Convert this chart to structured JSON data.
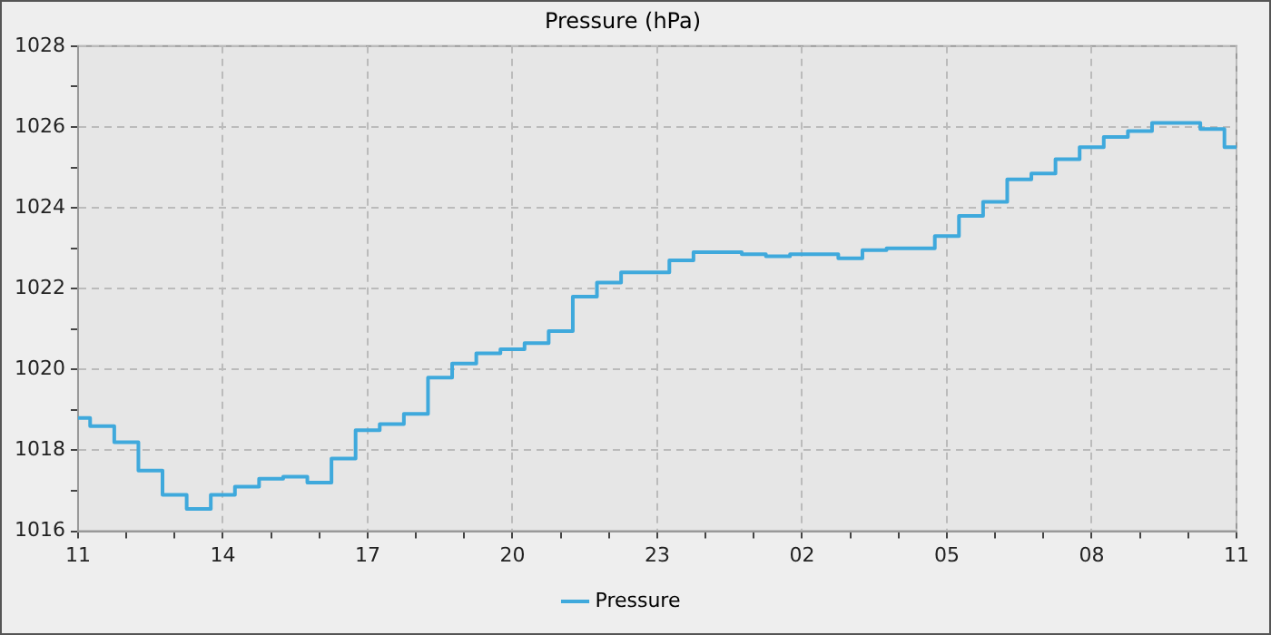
{
  "chart_data": {
    "type": "step",
    "title": "Pressure (hPa)",
    "legend": "bottom",
    "grid": true,
    "line_style": "solid",
    "marker": "none",
    "categories": [
      "11",
      null,
      null,
      null,
      null,
      null,
      "14",
      null,
      null,
      null,
      null,
      null,
      "17",
      null,
      null,
      null,
      null,
      null,
      "20",
      null,
      null,
      null,
      null,
      null,
      "23",
      null,
      null,
      null,
      null,
      null,
      "02",
      null,
      null,
      null,
      null,
      null,
      "05",
      null,
      null,
      null,
      null,
      null,
      "08",
      null,
      null,
      null,
      null,
      null,
      "11"
    ],
    "ylim": [
      1016,
      1028
    ],
    "yticks": [
      1016,
      {
        "value": 1017,
        "label": null
      },
      1018,
      {
        "value": 1019,
        "label": null
      },
      1020,
      {
        "value": 1021,
        "label": null
      },
      1022,
      {
        "value": 1023,
        "label": null
      },
      1024,
      {
        "value": 1025,
        "label": null
      },
      1026,
      {
        "value": 1027,
        "label": null
      },
      1028
    ],
    "series": [
      {
        "name": "Pressure",
        "color": "#3fa9dc",
        "values": [
          1018.8,
          1018.6,
          1018.2,
          1017.5,
          1016.9,
          1016.55,
          1016.9,
          1017.1,
          1017.3,
          1017.35,
          1017.2,
          1017.8,
          1018.5,
          1018.65,
          1018.9,
          1019.8,
          1020.15,
          1020.4,
          1020.5,
          1020.65,
          1020.95,
          1021.8,
          1022.15,
          1022.4,
          1022.4,
          1022.7,
          1022.9,
          1022.9,
          1022.85,
          1022.8,
          1022.85,
          1022.85,
          1022.75,
          1022.95,
          1023,
          1023,
          1023.3,
          1023.8,
          1024.15,
          1024.7,
          1024.85,
          1025.2,
          1025.5,
          1025.75,
          1025.9,
          1026.1,
          1026.1,
          1025.95,
          1025.5
        ]
      }
    ]
  }
}
